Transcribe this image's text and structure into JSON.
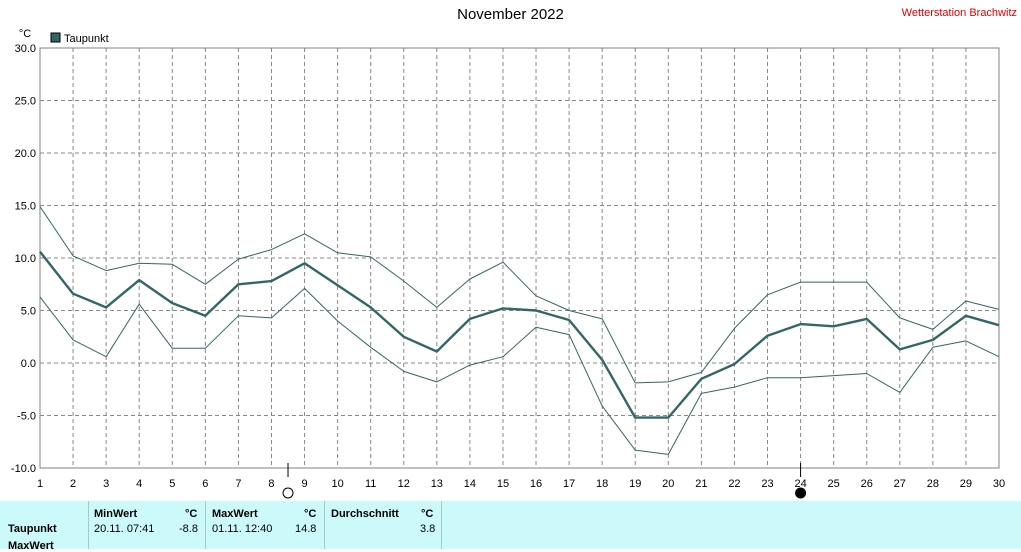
{
  "title": "November 2022",
  "station": "Wetterstation Brachwitz",
  "chart_data": {
    "type": "line",
    "unit": "°C",
    "legend": "Taupunkt",
    "legend_placement": "top-left",
    "grid": true,
    "x": [
      1,
      2,
      3,
      4,
      5,
      6,
      7,
      8,
      9,
      10,
      11,
      12,
      13,
      14,
      15,
      16,
      17,
      18,
      19,
      20,
      21,
      22,
      23,
      24,
      25,
      26,
      27,
      28,
      29,
      30
    ],
    "xlim": [
      1,
      30
    ],
    "ylim": [
      -10,
      30
    ],
    "y_ticks": [
      "-10.0",
      "-5.0",
      "0.0",
      "5.0",
      "10.0",
      "15.0",
      "20.0",
      "25.0",
      "30.0"
    ],
    "series": [
      {
        "name": "Taupunkt",
        "role": "mean",
        "values": [
          10.6,
          6.6,
          5.3,
          7.9,
          5.7,
          4.5,
          7.5,
          7.8,
          9.5,
          7.4,
          5.3,
          2.5,
          1.1,
          4.2,
          5.2,
          5.0,
          4.1,
          0.3,
          -5.2,
          -5.2,
          -1.5,
          -0.1,
          2.6,
          3.7,
          3.5,
          4.2,
          1.3,
          2.2,
          4.5,
          3.6
        ],
        "color": "#336666"
      },
      {
        "role": "max",
        "values": [
          14.9,
          10.2,
          8.8,
          9.5,
          9.4,
          7.5,
          9.9,
          10.8,
          12.3,
          10.5,
          10.1,
          7.8,
          5.3,
          8.0,
          9.6,
          6.4,
          5.0,
          4.2,
          -1.9,
          -1.8,
          -0.9,
          3.3,
          6.5,
          7.7,
          7.7,
          7.7,
          4.3,
          3.2,
          5.9,
          5.1
        ],
        "color": "#336666"
      },
      {
        "role": "min",
        "values": [
          6.3,
          2.2,
          0.6,
          5.6,
          1.4,
          1.4,
          4.5,
          4.3,
          7.1,
          4.0,
          1.5,
          -0.8,
          -1.8,
          -0.2,
          0.6,
          3.4,
          2.7,
          -4.1,
          -8.3,
          -8.7,
          -2.9,
          -2.3,
          -1.4,
          -1.4,
          -1.2,
          -1.0,
          -2.8,
          1.5,
          2.1,
          0.6
        ],
        "color": "#336666"
      }
    ],
    "moon_phases": [
      {
        "day": 8.5,
        "phase": "full-moon"
      },
      {
        "day": 24,
        "phase": "new-moon"
      }
    ]
  },
  "stats": {
    "row_label": "Taupunkt",
    "row_label_2": "MaxWert",
    "min_header": "MinWert",
    "min_unit": "°C",
    "min_time": "20.11.  07:41",
    "min_value": "-8.8",
    "max_header": "MaxWert",
    "max_unit": "°C",
    "max_time": "01.11.  12:40",
    "max_value": "14.8",
    "avg_header": "Durchschnitt",
    "avg_unit": "°C",
    "avg_value": "3.8"
  }
}
